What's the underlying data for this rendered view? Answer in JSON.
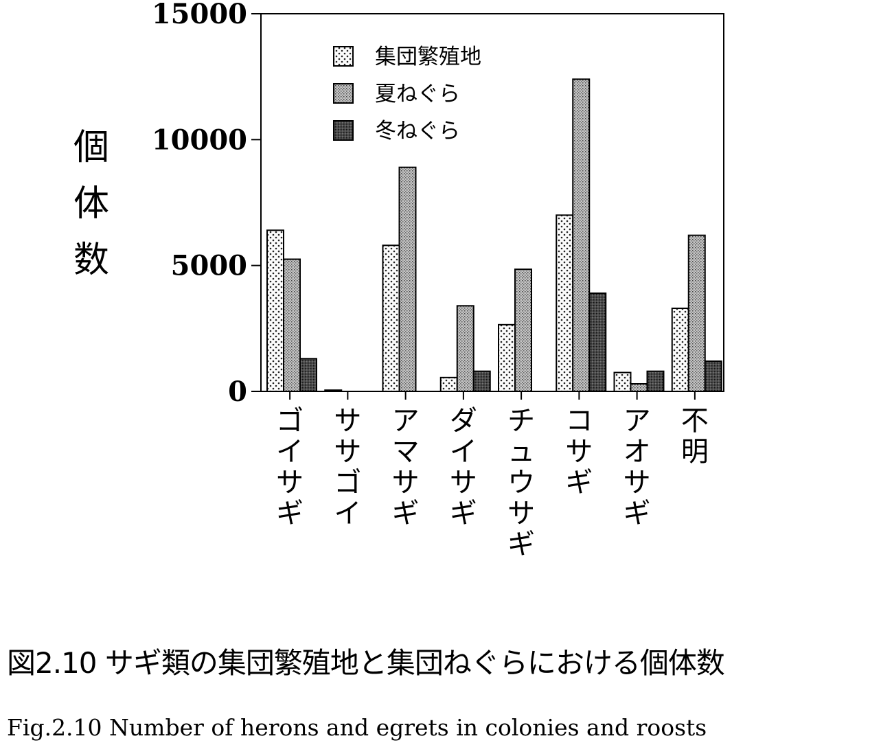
{
  "chart_data": {
    "type": "bar",
    "categories": [
      "ゴイサギ",
      "ササゴイ",
      "アマサギ",
      "ダイサギ",
      "チュウサギ",
      "コサギ",
      "アオサギ",
      "不明"
    ],
    "series": [
      {
        "name": "集団繁殖地",
        "values": [
          6400,
          50,
          5800,
          550,
          2650,
          7000,
          750,
          3300
        ]
      },
      {
        "name": "夏ねぐら",
        "values": [
          5250,
          0,
          8900,
          3400,
          4850,
          12400,
          300,
          6200
        ]
      },
      {
        "name": "冬ねぐら",
        "values": [
          1300,
          0,
          0,
          800,
          0,
          3900,
          800,
          1200
        ]
      }
    ],
    "ylabel": "個体数",
    "xlabel": "",
    "ylim": [
      0,
      15000
    ],
    "yticks": [
      "15000",
      "10000",
      "5000",
      "0"
    ],
    "grid": false,
    "legend_position": "top-center"
  },
  "captions": {
    "japanese": "図2.10 サギ類の集団繁殖地と集団ねぐらにおける個体数",
    "english": "Fig.2.10 Number of herons and egrets in colonies and roosts"
  }
}
